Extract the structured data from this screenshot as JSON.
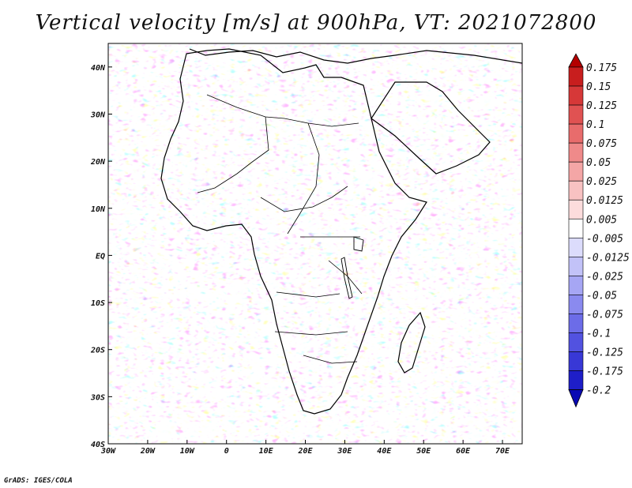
{
  "title": "Vertical velocity [m/s] at 900hPa, VT: 2021072800",
  "credit": "GrADS: IGES/COLA",
  "map": {
    "lon_range": [
      -30,
      75
    ],
    "lat_range": [
      -40,
      45
    ],
    "x_ticks": [
      "30W",
      "20W",
      "10W",
      "0",
      "10E",
      "20E",
      "30E",
      "40E",
      "50E",
      "60E",
      "70E"
    ],
    "y_ticks": [
      "40N",
      "30N",
      "20N",
      "10N",
      "EQ",
      "10S",
      "20S",
      "30S",
      "40S"
    ],
    "colors": {
      "updraft": "#e06060",
      "downdraft": "#6a6ae6",
      "coastline": "#000000"
    }
  },
  "colorbar": {
    "labels": [
      "0.175",
      "0.15",
      "0.125",
      "0.1",
      "0.075",
      "0.05",
      "0.025",
      "0.0125",
      "0.005",
      "-0.005",
      "-0.0125",
      "-0.025",
      "-0.05",
      "-0.075",
      "-0.1",
      "-0.125",
      "-0.175",
      "-0.2"
    ],
    "colors": [
      "#b40000",
      "#c81e1e",
      "#d63838",
      "#e05252",
      "#e86c6c",
      "#ef8a8a",
      "#f4a6a6",
      "#f8c2c2",
      "#fcdcdc",
      "#ffffff",
      "#dcdcfc",
      "#c2c2f8",
      "#a6a6f4",
      "#8a8aef",
      "#6c6ce8",
      "#5252e0",
      "#3838d6",
      "#1e1ec8",
      "#0a0ab4"
    ]
  }
}
